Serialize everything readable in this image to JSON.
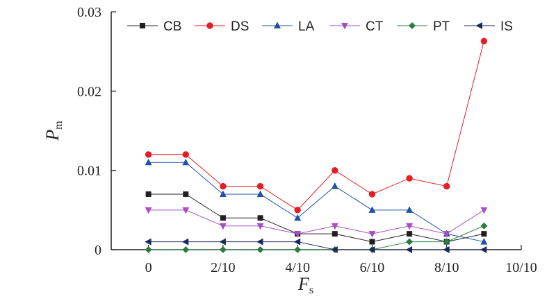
{
  "chart_data": {
    "type": "line",
    "x": [
      0,
      1,
      2,
      3,
      4,
      5,
      6,
      7,
      8,
      9
    ],
    "xlim": [
      -1,
      10
    ],
    "ylim": [
      0,
      0.03
    ],
    "xticks": [
      {
        "value": 0,
        "label": "0"
      },
      {
        "value": 2,
        "label": "2/10"
      },
      {
        "value": 4,
        "label": "4/10"
      },
      {
        "value": 6,
        "label": "6/10"
      },
      {
        "value": 8,
        "label": "8/10"
      },
      {
        "value": 10,
        "label": "10/10"
      }
    ],
    "yticks": [
      {
        "value": 0,
        "label": "0"
      },
      {
        "value": 0.01,
        "label": "0.01"
      },
      {
        "value": 0.02,
        "label": "0.02"
      },
      {
        "value": 0.03,
        "label": "0.03"
      }
    ],
    "xlabel": {
      "main": "F",
      "sub": "s"
    },
    "ylabel": {
      "main": "P",
      "sub": "m"
    },
    "legend_position": "top",
    "grid": false,
    "series": [
      {
        "name": "CB",
        "color": "#231f20",
        "marker": "square",
        "values": [
          0.007,
          0.007,
          0.004,
          0.004,
          0.002,
          0.002,
          0.001,
          0.002,
          0.001,
          0.002
        ]
      },
      {
        "name": "DS",
        "color": "#e31e24",
        "marker": "circle",
        "values": [
          0.012,
          0.012,
          0.008,
          0.008,
          0.005,
          0.01,
          0.007,
          0.009,
          0.008,
          0.0263
        ]
      },
      {
        "name": "LA",
        "color": "#2150a8",
        "marker": "triangle-up",
        "values": [
          0.011,
          0.011,
          0.007,
          0.007,
          0.004,
          0.008,
          0.005,
          0.005,
          0.002,
          0.001
        ]
      },
      {
        "name": "CT",
        "color": "#a64fc4",
        "marker": "triangle-down",
        "values": [
          0.005,
          0.005,
          0.003,
          0.003,
          0.002,
          0.003,
          0.002,
          0.003,
          0.002,
          0.005
        ]
      },
      {
        "name": "PT",
        "color": "#2a7d3e",
        "marker": "diamond",
        "values": [
          0,
          0,
          0,
          0,
          0,
          0,
          0,
          0.001,
          0.001,
          0.003
        ]
      },
      {
        "name": "IS",
        "color": "#1b2a5c",
        "marker": "triangle-left",
        "values": [
          0.001,
          0.001,
          0.001,
          0.001,
          0.001,
          0,
          0,
          0,
          0,
          0
        ]
      }
    ]
  }
}
